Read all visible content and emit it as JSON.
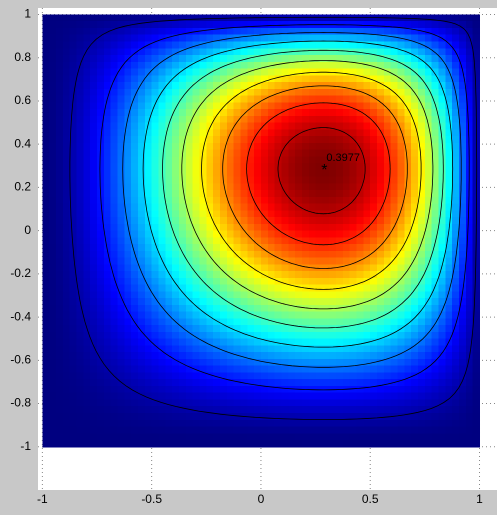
{
  "chart_data": {
    "type": "heatmap",
    "xlim": [
      -1.02,
      1.08
    ],
    "ylim": [
      -1.2,
      1.03
    ],
    "xticks": [
      -1,
      -0.5,
      0,
      0.5,
      1
    ],
    "yticks": [
      -1,
      -0.8,
      -0.6,
      -0.4,
      -0.2,
      0,
      0.2,
      0.4,
      0.6,
      0.8,
      1
    ],
    "grid": true,
    "colormap": "jet",
    "peak": {
      "x": 0.29,
      "y": 0.29,
      "value": 0.3977
    }
  }
}
